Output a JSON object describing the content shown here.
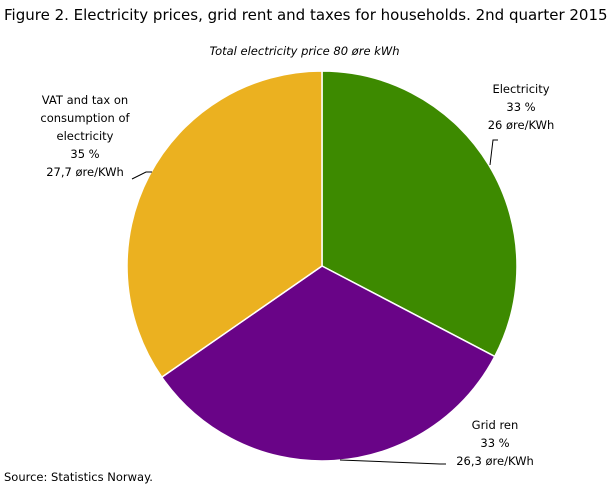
{
  "chart_data": {
    "type": "pie",
    "title": "Figure 2. Electricity prices, grid rent and taxes for households. 2nd quarter 2015",
    "subtitle": "Total electricity  price 80 øre kWh",
    "source": "Source: Statistics Norway.",
    "categories": [
      "Electricity",
      "Grid ren",
      "VAT and tax on consumption of electricity"
    ],
    "values": [
      33,
      33,
      35
    ],
    "value_labels": [
      "33 %",
      "33 %",
      "35 %"
    ],
    "amounts": [
      26,
      26.3,
      27.7
    ],
    "amount_labels": [
      "26 øre/KWh",
      "26,3 øre/KWh",
      "27,7 øre/KWh"
    ],
    "colors": [
      "#3d8a00",
      "#690487",
      "#ebb120"
    ]
  }
}
